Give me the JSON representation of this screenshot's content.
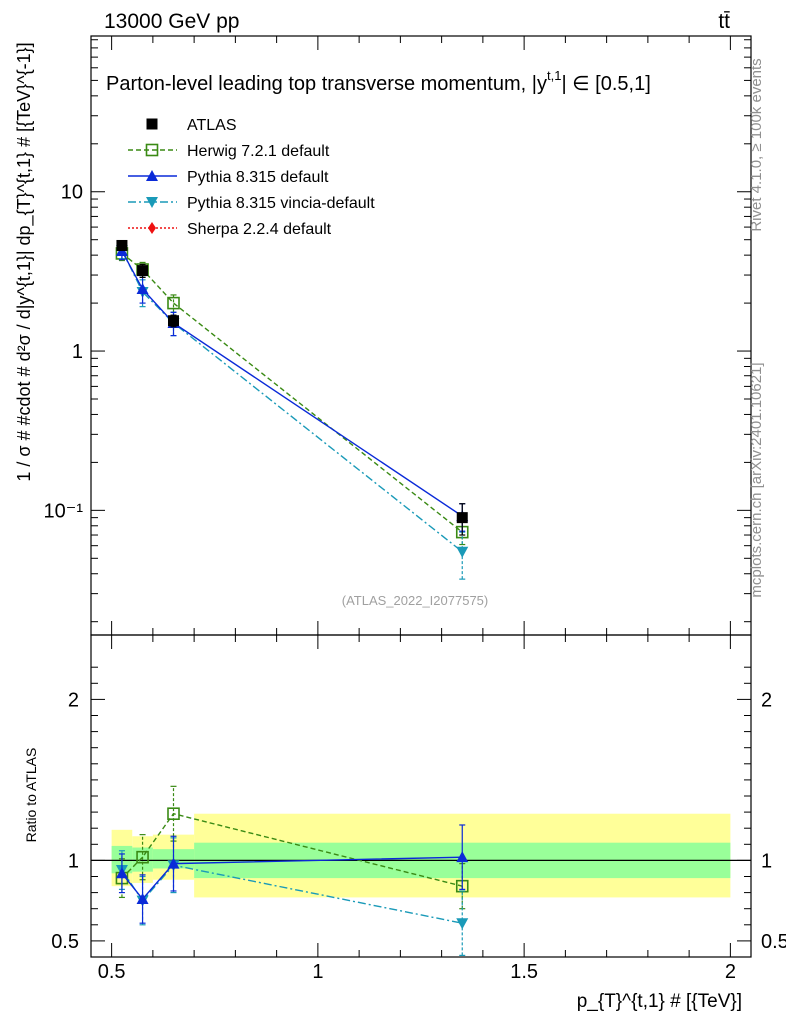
{
  "header": {
    "energy": "13000 GeV pp",
    "process": "tt̄",
    "title": "Parton-level leading top transverse momentum, |y",
    "title_sup": "t,1",
    "title_range": "| ∈ [0.5,1]",
    "rivet": "Rivet 4.1.0, ≥ 100k events",
    "mcplots": "mcplots.cern.ch [arXiv:2401.10621]",
    "analysis": "(ATLAS_2022_I2077575)"
  },
  "axes": {
    "ylabel_main": "1 / σ # #cdot # d²σ / d|y^{t,1}| dp_{T}^{t,1} # [{TeV}^{-1}]",
    "ylabel_ratio": "Ratio to ATLAS",
    "xlabel": "p_{T}^{t,1} # [{TeV}]"
  },
  "colors": {
    "atlas": "#000000",
    "herwig": "#3a8a14",
    "pythia": "#0a2ad8",
    "vincia": "#1a9ab8",
    "sherpa": "#ee1111",
    "band_inner": "#99ff99",
    "band_outer": "#ffff99"
  },
  "chart_data": [
    {
      "type": "scatter",
      "panel": "main",
      "yscale": "log",
      "xlim": [
        0.45,
        2.05
      ],
      "ylim": [
        0.0165,
        95
      ],
      "x_ticks": [
        0.5,
        1,
        1.5,
        2
      ],
      "y_ticks": [
        {
          "value": 0.1,
          "label": "10⁻¹"
        },
        {
          "value": 1,
          "label": "1"
        },
        {
          "value": 10,
          "label": "10"
        }
      ],
      "bin_edges": [
        0.5,
        0.55,
        0.6,
        0.7,
        2.0
      ],
      "series": [
        {
          "name": "ATLAS",
          "key": "atlas",
          "style": "square-filled",
          "x": [
            0.525,
            0.575,
            0.65,
            1.35
          ],
          "y": [
            4.6,
            3.2,
            1.55,
            0.09
          ],
          "err": [
            0.3,
            0.3,
            0.13,
            0.02
          ]
        },
        {
          "name": "Herwig 7.2.1 default",
          "key": "herwig",
          "style": "square-open",
          "dash": "5,3",
          "x": [
            0.525,
            0.575,
            0.65,
            1.35
          ],
          "y": [
            4.1,
            3.25,
            2.0,
            0.073
          ],
          "err": [
            0.4,
            0.35,
            0.25,
            0.012
          ]
        },
        {
          "name": "Pythia 8.315 default",
          "key": "pythia",
          "style": "triangle-up",
          "dash": "",
          "x": [
            0.525,
            0.575,
            0.65,
            1.35
          ],
          "y": [
            4.25,
            2.45,
            1.5,
            0.092
          ],
          "err": [
            0.5,
            0.45,
            0.25,
            0.018
          ]
        },
        {
          "name": "Pythia 8.315 vincia-default",
          "key": "vincia",
          "style": "triangle-down",
          "dash": "8,3,2,3",
          "x": [
            0.525,
            0.575,
            0.65,
            1.35
          ],
          "y": [
            4.3,
            2.35,
            1.5,
            0.055
          ],
          "err": [
            0.5,
            0.45,
            0.25,
            0.018
          ]
        },
        {
          "name": "Sherpa 2.2.4 default",
          "key": "sherpa",
          "style": "diamond",
          "dash": "2,2",
          "x": [],
          "y": [],
          "err": []
        }
      ]
    },
    {
      "type": "scatter",
      "panel": "ratio",
      "xlim": [
        0.45,
        2.05
      ],
      "ylim": [
        0.4,
        2.4
      ],
      "x_ticks": [
        0.5,
        1,
        1.5,
        2
      ],
      "y_ticks": [
        0.5,
        1,
        2
      ],
      "bands": [
        {
          "x0": 0.5,
          "x1": 0.55,
          "inner": [
            0.92,
            1.09
          ],
          "outer": [
            0.84,
            1.19
          ]
        },
        {
          "x0": 0.55,
          "x1": 0.6,
          "inner": [
            0.93,
            1.08
          ],
          "outer": [
            0.86,
            1.15
          ]
        },
        {
          "x0": 0.6,
          "x1": 0.7,
          "inner": [
            0.95,
            1.07
          ],
          "outer": [
            0.88,
            1.16
          ]
        },
        {
          "x0": 0.7,
          "x1": 2.0,
          "inner": [
            0.89,
            1.11
          ],
          "outer": [
            0.77,
            1.29
          ]
        }
      ],
      "series": [
        {
          "name": "Herwig 7.2.1 default",
          "key": "herwig",
          "style": "square-open",
          "dash": "5,3",
          "x": [
            0.525,
            0.575,
            0.65,
            1.35
          ],
          "y": [
            0.89,
            1.02,
            1.29,
            0.84
          ],
          "err": [
            0.12,
            0.14,
            0.17,
            0.14
          ]
        },
        {
          "name": "Pythia 8.315 default",
          "key": "pythia",
          "style": "triangle-up",
          "dash": "",
          "x": [
            0.525,
            0.575,
            0.65,
            1.35
          ],
          "y": [
            0.92,
            0.76,
            0.98,
            1.02
          ],
          "err": [
            0.12,
            0.15,
            0.17,
            0.2
          ]
        },
        {
          "name": "Pythia 8.315 vincia-default",
          "key": "vincia",
          "style": "triangle-down",
          "dash": "8,3,2,3",
          "x": [
            0.525,
            0.575,
            0.65,
            1.35
          ],
          "y": [
            0.94,
            0.75,
            0.97,
            0.61
          ],
          "err": [
            0.12,
            0.15,
            0.17,
            0.2
          ]
        }
      ]
    }
  ]
}
